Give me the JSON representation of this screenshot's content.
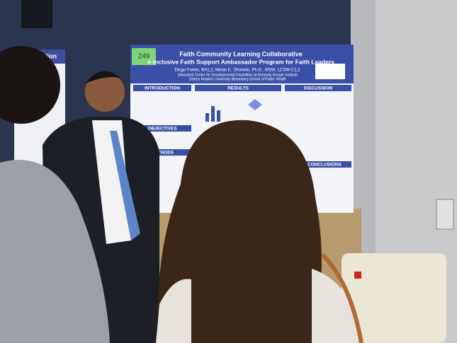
{
  "poster": {
    "tag": "249",
    "title": "Faith Community Learning Collaborative",
    "subtitle": "n Inclusive Faith Support Ambassador Program for Faith Leaders",
    "authors": "Diogo Fortes, BA1,2, Mirian E. Ofonedu, Ph.D., MSW, LCSW-C1,2",
    "affiliations": [
      "1Maryland Center for Developmental Disabilities at Kennedy Krieger Institute",
      "2Johns Hopkins University Bloomberg School of Public Health"
    ],
    "sections": [
      "INTRODUCTION",
      "RESULTS",
      "DISCUSSION",
      "OBJECTIVES",
      "METHODS",
      "CONCLUSIONS"
    ]
  },
  "left_poster": {
    "title": "arction"
  }
}
